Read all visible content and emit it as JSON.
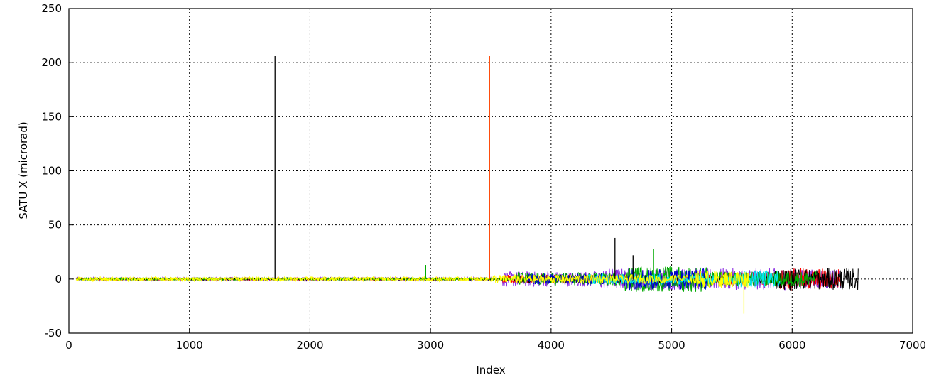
{
  "chart_data": {
    "type": "line",
    "title": "",
    "xlabel": "Index",
    "ylabel": "SATU X (microrad)",
    "xlim": [
      0,
      7000
    ],
    "ylim": [
      -50,
      250
    ],
    "x_ticks": [
      0,
      1000,
      2000,
      3000,
      4000,
      5000,
      6000,
      7000
    ],
    "y_ticks": [
      -50,
      0,
      50,
      100,
      150,
      200,
      250
    ],
    "x_tick_labels": [
      "0",
      "1000",
      "2000",
      "3000",
      "4000",
      "5000",
      "6000",
      "7000"
    ],
    "y_tick_labels": [
      "-50",
      "0",
      "50",
      "100",
      "150",
      "200",
      "250"
    ],
    "grid": true,
    "grid_style": "dotted",
    "legend": "none",
    "series": [
      {
        "color": "#8a2be2",
        "x_range": [
          60,
          6400
        ],
        "baseline": 0,
        "noise": [
          [
            0,
            1.5
          ],
          [
            3600,
            7
          ],
          [
            4400,
            10
          ],
          [
            6000,
            9
          ]
        ]
      },
      {
        "color": "#ff0000",
        "x_range": [
          60,
          6400
        ],
        "baseline": 0,
        "noise": [
          [
            0,
            1
          ],
          [
            3600,
            4
          ],
          [
            5400,
            6
          ],
          [
            5900,
            10
          ]
        ]
      },
      {
        "color": "#000000",
        "x_range": [
          60,
          6550
        ],
        "baseline": 0,
        "noise": [
          [
            0,
            1
          ],
          [
            3700,
            4
          ],
          [
            5850,
            10
          ]
        ]
      },
      {
        "color": "#00aa00",
        "x_range": [
          60,
          6200
        ],
        "baseline": 0,
        "noise": [
          [
            0,
            1
          ],
          [
            3700,
            6
          ],
          [
            4600,
            12
          ],
          [
            5300,
            7
          ]
        ]
      },
      {
        "color": "#0000cc",
        "x_range": [
          3800,
          5300
        ],
        "baseline": 0,
        "noise": [
          [
            3800,
            5
          ],
          [
            4600,
            10
          ]
        ]
      },
      {
        "color": "#00e5ee",
        "x_range": [
          4300,
          5900
        ],
        "baseline": 0,
        "noise": [
          [
            4300,
            5
          ],
          [
            5550,
            8
          ]
        ]
      },
      {
        "color": "#ffff00",
        "x_range": [
          60,
          5650
        ],
        "baseline": 0,
        "noise": [
          [
            0,
            2
          ],
          [
            3500,
            4
          ],
          [
            5200,
            8
          ]
        ]
      }
    ],
    "spikes": [
      {
        "x": 1710,
        "y": 206,
        "color": "#000000"
      },
      {
        "x": 3490,
        "y": 206,
        "color": "#ff4400"
      },
      {
        "x": 2960,
        "y": 13,
        "color": "#00aa00"
      },
      {
        "x": 4530,
        "y": 38,
        "color": "#000000"
      },
      {
        "x": 4680,
        "y": 22,
        "color": "#000000"
      },
      {
        "x": 4850,
        "y": 28,
        "color": "#00aa00"
      },
      {
        "x": 5600,
        "y": -32,
        "color": "#ffff00"
      }
    ]
  }
}
